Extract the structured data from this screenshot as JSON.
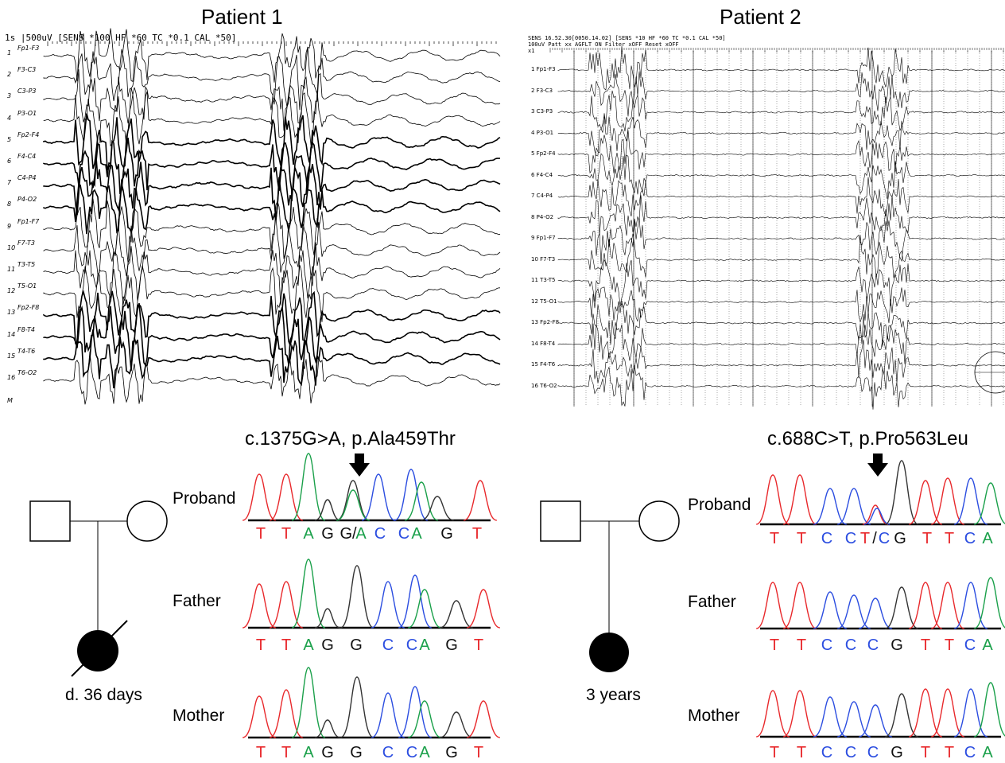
{
  "patient1": {
    "title": "Patient 1",
    "eeg_header": "1s   |500uV  [SENS *100  HF *60  TC *0.1  CAL *50]",
    "channels": [
      "Fp1-F3",
      "F3-C3",
      "C3-P3",
      "P3-O1",
      "Fp2-F4",
      "F4-C4",
      "C4-P4",
      "P4-O2",
      "Fp1-F7",
      "F7-T3",
      "T3-T5",
      "T5-O1",
      "Fp2-F8",
      "F8-T4",
      "T4-T6",
      "T6-O2"
    ],
    "channel_numbers": [
      "1",
      "2",
      "3",
      "4",
      "5",
      "6",
      "7",
      "8",
      "9",
      "10",
      "11",
      "12",
      "13",
      "14",
      "15",
      "16"
    ],
    "marker": "M",
    "mutation": "c.1375G>A, p.Ala459Thr",
    "pedigree_label": "d. 36 days",
    "rows": [
      {
        "label": "Proband",
        "bases": [
          {
            "t": "T",
            "c": "#e8282b"
          },
          {
            "t": "T",
            "c": "#e8282b"
          },
          {
            "t": "A",
            "c": "#1aa04a"
          },
          {
            "t": "G",
            "c": "#111111"
          },
          {
            "t": "G/",
            "c": "#111111"
          },
          {
            "t": "A",
            "c": "#1aa04a"
          },
          {
            "t": "C",
            "c": "#2b4de0"
          },
          {
            "t": "C",
            "c": "#2b4de0"
          },
          {
            "t": "A",
            "c": "#1aa04a"
          },
          {
            "t": "G",
            "c": "#111111"
          },
          {
            "t": "T",
            "c": "#e8282b"
          }
        ]
      },
      {
        "label": "Father",
        "bases": [
          {
            "t": "T",
            "c": "#e8282b"
          },
          {
            "t": "T",
            "c": "#e8282b"
          },
          {
            "t": "A",
            "c": "#1aa04a"
          },
          {
            "t": "G",
            "c": "#111111"
          },
          {
            "t": "G",
            "c": "#111111"
          },
          {
            "t": "C",
            "c": "#2b4de0"
          },
          {
            "t": "C",
            "c": "#2b4de0"
          },
          {
            "t": "A",
            "c": "#1aa04a"
          },
          {
            "t": "G",
            "c": "#111111"
          },
          {
            "t": "T",
            "c": "#e8282b"
          }
        ]
      },
      {
        "label": "Mother",
        "bases": [
          {
            "t": "T",
            "c": "#e8282b"
          },
          {
            "t": "T",
            "c": "#e8282b"
          },
          {
            "t": "A",
            "c": "#1aa04a"
          },
          {
            "t": "G",
            "c": "#111111"
          },
          {
            "t": "G",
            "c": "#111111"
          },
          {
            "t": "C",
            "c": "#2b4de0"
          },
          {
            "t": "C",
            "c": "#2b4de0"
          },
          {
            "t": "A",
            "c": "#1aa04a"
          },
          {
            "t": "G",
            "c": "#111111"
          },
          {
            "t": "T",
            "c": "#e8282b"
          }
        ]
      }
    ]
  },
  "patient2": {
    "title": "Patient 2",
    "eeg_header_line1": "SENS    16.52.30[0050.14.02] [SENS *10  HF *60  TC *0.1  CAL *50]",
    "eeg_header_line2": "100uV   Patt  xx    AGFLT  ON  Filter  xOFF  Reset  xOFF",
    "eeg_header_line3": "x1",
    "channels": [
      "1 Fp1-F3",
      "2 F3-C3",
      "3 C3-P3",
      "4 P3-O1",
      "5 Fp2-F4",
      "6 F4-C4",
      "7 C4-P4",
      "8 P4-O2",
      "9 Fp1-F7",
      "10 F7-T3",
      "11 T3-T5",
      "12 T5-O1",
      "13 Fp2-F8",
      "14 F8-T4",
      "15 F4-T6",
      "16 T6-O2"
    ],
    "mutation": "c.688C>T, p.Pro563Leu",
    "pedigree_label": "3 years",
    "rows": [
      {
        "label": "Proband",
        "bases": [
          {
            "t": "T",
            "c": "#e8282b"
          },
          {
            "t": "T",
            "c": "#e8282b"
          },
          {
            "t": "C",
            "c": "#2b4de0"
          },
          {
            "t": "C",
            "c": "#2b4de0"
          },
          {
            "t": "T",
            "c": "#e8282b"
          },
          {
            "t": "/",
            "c": "#111111"
          },
          {
            "t": "C",
            "c": "#2b4de0"
          },
          {
            "t": "G",
            "c": "#111111"
          },
          {
            "t": "T",
            "c": "#e8282b"
          },
          {
            "t": "T",
            "c": "#e8282b"
          },
          {
            "t": "C",
            "c": "#2b4de0"
          },
          {
            "t": "A",
            "c": "#1aa04a"
          }
        ]
      },
      {
        "label": "Father",
        "bases": [
          {
            "t": "T",
            "c": "#e8282b"
          },
          {
            "t": "T",
            "c": "#e8282b"
          },
          {
            "t": "C",
            "c": "#2b4de0"
          },
          {
            "t": "C",
            "c": "#2b4de0"
          },
          {
            "t": "C",
            "c": "#2b4de0"
          },
          {
            "t": "G",
            "c": "#111111"
          },
          {
            "t": "T",
            "c": "#e8282b"
          },
          {
            "t": "T",
            "c": "#e8282b"
          },
          {
            "t": "C",
            "c": "#2b4de0"
          },
          {
            "t": "A",
            "c": "#1aa04a"
          }
        ]
      },
      {
        "label": "Mother",
        "bases": [
          {
            "t": "T",
            "c": "#e8282b"
          },
          {
            "t": "T",
            "c": "#e8282b"
          },
          {
            "t": "C",
            "c": "#2b4de0"
          },
          {
            "t": "C",
            "c": "#2b4de0"
          },
          {
            "t": "C",
            "c": "#2b4de0"
          },
          {
            "t": "G",
            "c": "#111111"
          },
          {
            "t": "T",
            "c": "#e8282b"
          },
          {
            "t": "T",
            "c": "#e8282b"
          },
          {
            "t": "C",
            "c": "#2b4de0"
          },
          {
            "t": "A",
            "c": "#1aa04a"
          }
        ]
      }
    ]
  },
  "colors": {
    "T": "#e8282b",
    "A": "#1aa04a",
    "C": "#2b4de0",
    "G": "#111111"
  }
}
